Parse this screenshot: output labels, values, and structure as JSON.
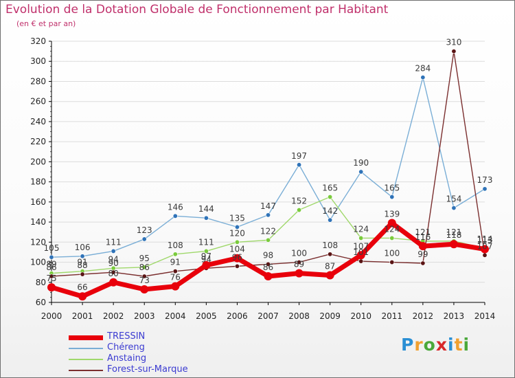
{
  "title": "Evolution de la Dotation Globale de Fonctionnement par Habitant",
  "subtitle": "(en € et par an)",
  "logo": {
    "text": "Proxiti",
    "letter_colors": [
      "#2a8fd4",
      "#f0a030",
      "#4aa83a",
      "#d8282a",
      "#2a8fd4",
      "#f0a030",
      "#4aa83a"
    ]
  },
  "colors": {
    "title": "#c0306b",
    "axis": "#000000",
    "grid": "#dcdcdc",
    "label": "#3a3a3a",
    "legend_text": "#3b3bd1"
  },
  "chart_data": {
    "type": "line",
    "title": "Evolution de la Dotation Globale de Fonctionnement par Habitant",
    "subtitle": "(en € et par an)",
    "x": [
      2000,
      2001,
      2002,
      2003,
      2004,
      2005,
      2006,
      2007,
      2008,
      2009,
      2010,
      2011,
      2012,
      2013,
      2014
    ],
    "ylim": [
      60,
      320
    ],
    "yticks": [
      60,
      80,
      100,
      120,
      140,
      160,
      180,
      200,
      220,
      240,
      260,
      280,
      300,
      320
    ],
    "grid": "horizontal",
    "legend_position": "bottom-left",
    "series": [
      {
        "name": "TRESSIN",
        "color": "#e8000b",
        "marker": "#e8000b",
        "width": 7,
        "values": [
          75,
          66,
          80,
          73,
          76,
          97,
          104,
          86,
          89,
          87,
          107,
          139,
          116,
          118,
          113
        ]
      },
      {
        "name": "Chéreng",
        "color": "#7aaed6",
        "marker": "#2f73b8",
        "width": 1.4,
        "values": [
          105,
          106,
          111,
          123,
          146,
          144,
          135,
          147,
          197,
          142,
          190,
          165,
          284,
          154,
          173
        ]
      },
      {
        "name": "Anstaing",
        "color": "#9fd86a",
        "marker": "#7acb3d",
        "width": 1.4,
        "values": [
          89,
          91,
          94,
          95,
          108,
          111,
          120,
          122,
          152,
          165,
          124,
          124,
          121,
          121,
          114
        ]
      },
      {
        "name": "Forest-sur-Marque",
        "color": "#7a2e2e",
        "marker": "#5a1414",
        "width": 1.4,
        "values": [
          86,
          88,
          90,
          86,
          91,
          94,
          96,
          98,
          100,
          108,
          101,
          100,
          99,
          310,
          107
        ]
      }
    ]
  }
}
